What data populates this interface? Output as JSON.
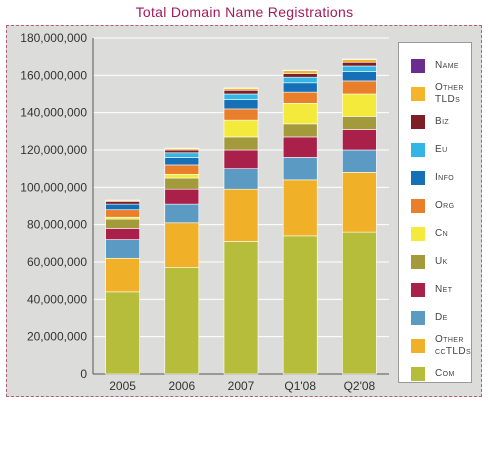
{
  "title": "Total Domain Name Registrations",
  "chart_data": {
    "type": "bar",
    "stacked": true,
    "title": "Total Domain Name Registrations",
    "categories": [
      "2005",
      "2006",
      "2007",
      "Q1'08",
      "Q2'08"
    ],
    "ylim": [
      0,
      180000000
    ],
    "yticks": [
      0,
      20000000,
      40000000,
      60000000,
      80000000,
      100000000,
      120000000,
      140000000,
      160000000,
      180000000
    ],
    "ytick_labels": [
      "0",
      "20,000,000",
      "40,000,000",
      "60,000,000",
      "80,000,000",
      "100,000,000",
      "120,000,000",
      "140,000,000",
      "160,000,000",
      "180,000,000"
    ],
    "grid": true,
    "legend_position": "right",
    "series": [
      {
        "name": "Com",
        "color": "#b5bd3a",
        "values": [
          44000000,
          57000000,
          71000000,
          74000000,
          76000000
        ]
      },
      {
        "name": "Other ccTLDs",
        "color": "#f0b128",
        "values": [
          18000000,
          24000000,
          28000000,
          30000000,
          32000000
        ]
      },
      {
        "name": "De",
        "color": "#5b9bc3",
        "values": [
          10000000,
          10000000,
          11000000,
          12000000,
          12000000
        ]
      },
      {
        "name": "Net",
        "color": "#a9204a",
        "values": [
          6000000,
          8000000,
          10000000,
          11000000,
          11000000
        ]
      },
      {
        "name": "Uk",
        "color": "#a39a3b",
        "values": [
          5000000,
          6000000,
          7000000,
          7000000,
          7000000
        ]
      },
      {
        "name": "Cn",
        "color": "#f3ea3c",
        "values": [
          1000000,
          2000000,
          9000000,
          11000000,
          12000000
        ]
      },
      {
        "name": "Org",
        "color": "#e97f2a",
        "values": [
          4000000,
          5000000,
          6000000,
          6000000,
          7000000
        ]
      },
      {
        "name": "Info",
        "color": "#1570b8",
        "values": [
          3000000,
          4000000,
          5000000,
          5000000,
          5000000
        ]
      },
      {
        "name": "Eu",
        "color": "#31b6e6",
        "values": [
          0,
          2500000,
          3000000,
          3000000,
          3000000
        ]
      },
      {
        "name": "Biz",
        "color": "#7e1e25",
        "values": [
          1500000,
          1500000,
          2000000,
          2000000,
          2000000
        ]
      },
      {
        "name": "Other TLDs",
        "color": "#f4b52b",
        "values": [
          500000,
          800000,
          1000000,
          1500000,
          1500000
        ]
      },
      {
        "name": "Name",
        "color": "#6a2c8f",
        "values": [
          200000,
          200000,
          300000,
          300000,
          300000
        ]
      }
    ]
  },
  "legend": [
    {
      "label": "Name",
      "color": "#6a2c8f"
    },
    {
      "label": "Other TLDs",
      "color": "#f4b52b"
    },
    {
      "label": "Biz",
      "color": "#7e1e25"
    },
    {
      "label": "Eu",
      "color": "#31b6e6"
    },
    {
      "label": "Info",
      "color": "#1570b8"
    },
    {
      "label": "Org",
      "color": "#e97f2a"
    },
    {
      "label": "Cn",
      "color": "#f3ea3c"
    },
    {
      "label": "Uk",
      "color": "#a39a3b"
    },
    {
      "label": "Net",
      "color": "#a9204a"
    },
    {
      "label": "De",
      "color": "#5b9bc3"
    },
    {
      "label": "Other ccTLDs",
      "color": "#f0b128"
    },
    {
      "label": "Com",
      "color": "#b5bd3a"
    }
  ]
}
